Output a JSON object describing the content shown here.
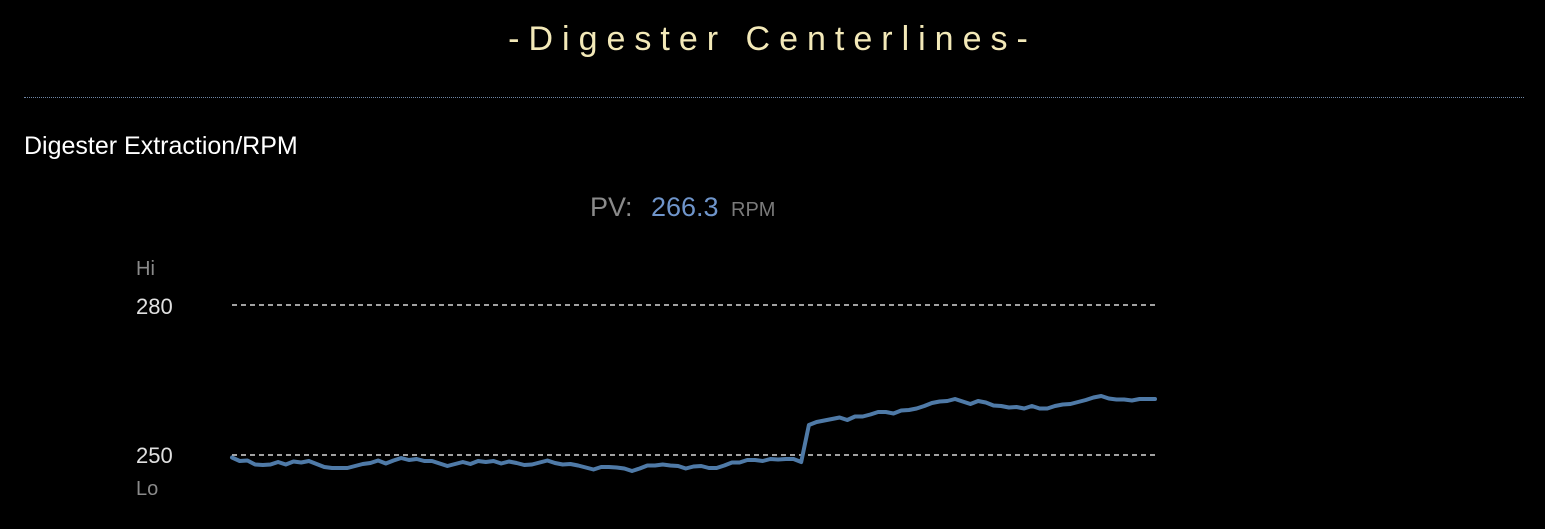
{
  "header": {
    "title": "-Digester Centerlines-"
  },
  "section": {
    "title": "Digester Extraction/RPM"
  },
  "pv": {
    "label": "PV:",
    "value": "266.3",
    "unit": "RPM"
  },
  "limits": {
    "hi_label": "Hi",
    "lo_label": "Lo",
    "hi_value": "280",
    "lo_value": "250"
  },
  "colors": {
    "title": "#f3e9b8",
    "trend": "#4f7aa7",
    "pv_value": "#6f95cb",
    "limit_line": "#d8d8d8"
  },
  "chart_data": {
    "type": "line",
    "ylim": [
      247,
      281
    ],
    "hi_limit": 280,
    "lo_limit": 250,
    "series": [
      {
        "values": [
          249.5,
          248.8,
          248.9,
          248.1,
          248.0,
          248.1,
          248.6,
          248.1,
          248.7,
          248.5,
          248.8,
          248.2,
          247.6,
          247.4,
          247.4,
          247.4,
          247.8,
          248.2,
          248.4,
          248.9,
          248.3,
          248.9,
          249.4,
          249.0,
          249.2,
          248.8,
          248.8,
          248.3,
          247.8,
          248.2,
          248.6,
          248.2,
          248.8,
          248.6,
          248.8,
          248.3,
          248.7,
          248.4,
          248.0,
          248.1,
          248.5,
          248.9,
          248.4,
          248.1,
          248.2,
          247.9,
          247.5,
          247.1,
          247.6,
          247.6,
          247.5,
          247.3,
          246.8,
          247.3,
          247.9,
          247.9,
          248.1,
          247.9,
          247.8,
          247.3,
          247.7,
          247.8,
          247.4,
          247.4,
          247.9,
          248.5,
          248.5,
          249.0,
          249.0,
          248.8,
          249.2,
          249.1,
          249.2,
          249.2,
          248.6,
          256.0,
          256.6,
          256.9,
          257.2,
          257.5,
          257.0,
          257.7,
          257.7,
          258.1,
          258.6,
          258.6,
          258.3,
          258.9,
          259.0,
          259.3,
          259.8,
          260.4,
          260.7,
          260.8,
          261.2,
          260.7,
          260.2,
          260.8,
          260.5,
          259.9,
          259.8,
          259.5,
          259.6,
          259.3,
          259.8,
          259.3,
          259.3,
          259.8,
          260.1,
          260.2,
          260.6,
          261.0,
          261.5,
          261.8,
          261.3,
          261.1,
          261.1,
          260.9,
          261.2,
          261.2,
          261.2
        ]
      }
    ]
  }
}
